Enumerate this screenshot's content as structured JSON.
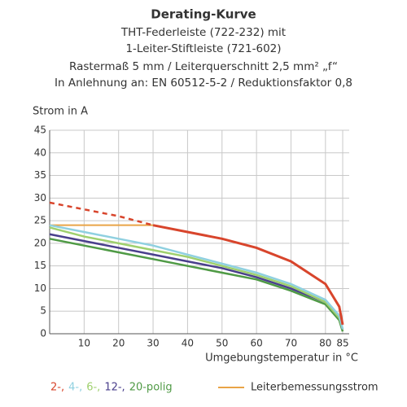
{
  "chart_data": {
    "type": "line",
    "title": "Derating-Kurve",
    "subtitle_lines": [
      "THT-Federleiste (722-232) mit",
      "1-Leiter-Stiftleiste (721-602)",
      "Rastermaß 5 mm / Leiterquerschnitt 2,5 mm² „f“",
      "In Anlehnung an: EN 60512-5-2 / Reduktionsfaktor 0,8"
    ],
    "y_label": "Strom in A",
    "x_label": "Umgebungstemperatur in °C",
    "x": [
      0,
      10,
      20,
      30,
      40,
      50,
      60,
      70,
      80,
      84,
      85
    ],
    "series": [
      {
        "name": "2-,",
        "color": "#d8452c",
        "dashed_values": [
          29,
          27.5,
          26,
          24,
          null,
          null,
          null,
          null,
          null,
          null,
          null
        ],
        "values": [
          null,
          null,
          null,
          24,
          22.5,
          21,
          19,
          16,
          11,
          6,
          2
        ]
      },
      {
        "name": "4-,",
        "color": "#8fd0e0",
        "values": [
          24,
          22.5,
          21,
          19.5,
          17.5,
          15.5,
          13.5,
          11,
          7.5,
          4,
          1
        ]
      },
      {
        "name": "6-,",
        "color": "#9fd06e",
        "values": [
          23.5,
          21.5,
          20,
          18.5,
          17,
          15,
          13,
          10.5,
          7,
          3.5,
          1
        ]
      },
      {
        "name": "12-,",
        "color": "#4a3f8c",
        "values": [
          22,
          20.5,
          19,
          17.5,
          16,
          14.5,
          12.5,
          10,
          7,
          3.5,
          1
        ]
      },
      {
        "name": "20-polig",
        "color": "#4f9a45",
        "values": [
          21,
          19.5,
          18,
          16.5,
          15,
          13.5,
          12,
          9.5,
          6.5,
          3,
          0.5
        ]
      }
    ],
    "reference_line": {
      "name": "Leiterbemessungsstrom",
      "color": "#e9a447",
      "x": [
        0,
        30
      ],
      "values": [
        24,
        24
      ]
    },
    "xlim": [
      0,
      85
    ],
    "xticks": [
      10,
      20,
      30,
      40,
      50,
      60,
      70,
      80,
      85
    ],
    "ylim": [
      0,
      45
    ],
    "yticks": [
      0,
      5,
      10,
      15,
      20,
      25,
      30,
      35,
      40,
      45
    ],
    "grid": true
  }
}
